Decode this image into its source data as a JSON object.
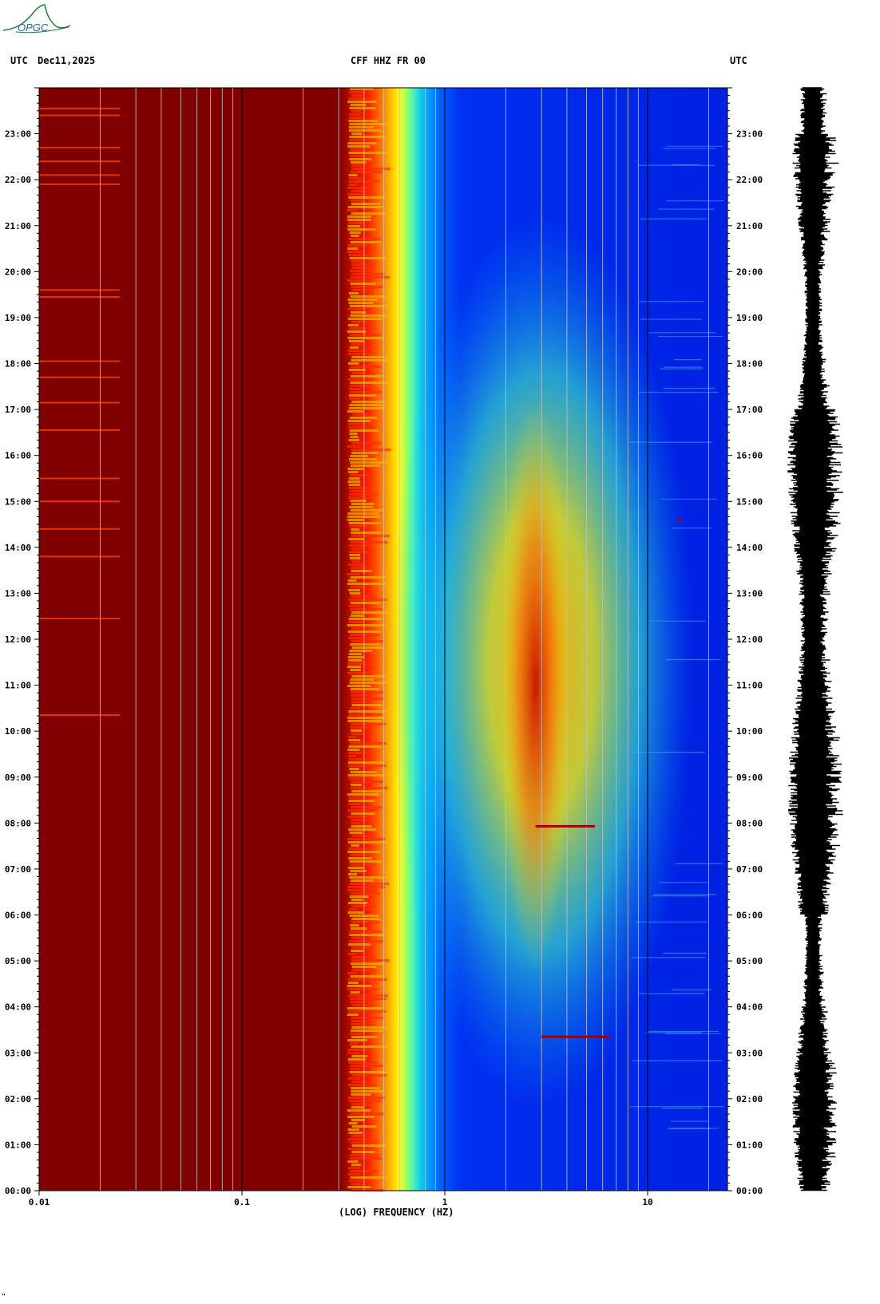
{
  "logo": {
    "text": "OPGC",
    "color": "#1e7a3c",
    "text_color": "#2b5fa8"
  },
  "header": {
    "left_label": "UTC",
    "date": "Dec11,2025",
    "title": "CFF HHZ FR 00",
    "right_label": "UTC"
  },
  "chart_data": {
    "type": "heatmap",
    "title": "CFF HHZ FR 00",
    "xlabel": "(LOG) FREQUENCY (HZ)",
    "ylabel": "",
    "x_scale": "log",
    "xlim": [
      0.01,
      25
    ],
    "x_ticks": [
      0.01,
      0.1,
      1,
      10
    ],
    "x_tick_labels": [
      "0.01",
      "0.1",
      "1",
      "10"
    ],
    "ylim_hours": [
      0,
      24
    ],
    "y_tick_labels": [
      "00:00",
      "01:00",
      "02:00",
      "03:00",
      "04:00",
      "05:00",
      "06:00",
      "07:00",
      "08:00",
      "09:00",
      "10:00",
      "11:00",
      "12:00",
      "13:00",
      "14:00",
      "15:00",
      "16:00",
      "17:00",
      "18:00",
      "19:00",
      "20:00",
      "21:00",
      "22:00",
      "23:00"
    ],
    "colormap": "jet",
    "colors": {
      "high": "#800000",
      "low": "#0000b0",
      "mid": "#ffff00"
    },
    "description_levels": {
      "saturated_below_hz": 0.33,
      "transition_hz": [
        0.33,
        0.75
      ],
      "microseism_peak_hz": [
        2,
        5
      ],
      "microseism_peak_hours": [
        7,
        16
      ]
    },
    "events": [
      {
        "hour": 7.93,
        "freq_range_hz": [
          2.8,
          5.5
        ]
      },
      {
        "hour": 3.35,
        "freq_range_hz": [
          3.0,
          6.5
        ]
      },
      {
        "hour": 14.6,
        "freq_range_hz": [
          14,
          14.6
        ]
      }
    ],
    "seismogram": "trace"
  },
  "footer": {
    "xlabel": "(LOG) FREQUENCY (HZ)",
    "mark": "\""
  }
}
